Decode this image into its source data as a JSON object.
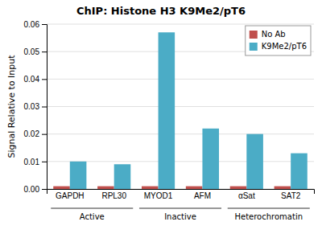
{
  "chart_data": {
    "type": "bar",
    "title": "ChIP: Histone H3 K9Me2/pT6",
    "ylabel": "Signal Relative to Input",
    "categories": [
      "GAPDH",
      "RPL30",
      "MYOD1",
      "AFM",
      "αSat",
      "SAT2"
    ],
    "series": [
      {
        "name": "No Ab",
        "color": "#c0504d",
        "values": [
          0.001,
          0.001,
          0.001,
          0.001,
          0.001,
          0.001
        ]
      },
      {
        "name": "K9Me2/pT6",
        "color": "#4bacc6",
        "values": [
          0.01,
          0.009,
          0.057,
          0.022,
          0.02,
          0.013
        ]
      }
    ],
    "groups": [
      {
        "label": "Active",
        "categories": [
          "GAPDH",
          "RPL30"
        ]
      },
      {
        "label": "Inactive",
        "categories": [
          "MYOD1",
          "AFM"
        ]
      },
      {
        "label": "Heterochromatin",
        "categories": [
          "αSat",
          "SAT2"
        ]
      }
    ],
    "ylim": [
      0,
      0.06
    ],
    "yticks": [
      {
        "value": 0,
        "label": "0.00"
      },
      0.01,
      0.02,
      0.03,
      0.04,
      0.05,
      0.06
    ],
    "grid": true,
    "legend": "upper-right"
  }
}
